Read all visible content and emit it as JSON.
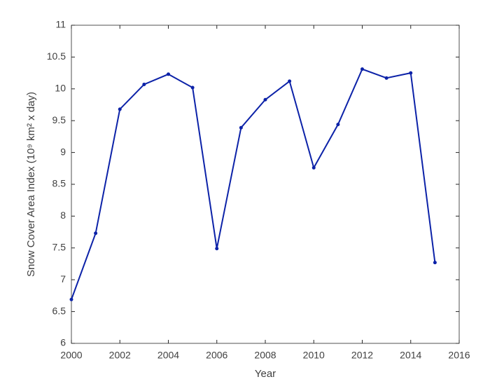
{
  "chart_data": {
    "type": "line",
    "x_label": "Year",
    "y_label": "Snow Cover Area Index (10⁹ km² x day)",
    "x": [
      2000,
      2001,
      2002,
      2003,
      2004,
      2005,
      2006,
      2007,
      2008,
      2009,
      2010,
      2011,
      2012,
      2013,
      2014,
      2015
    ],
    "series": [
      {
        "name": "Snow Cover Area Index",
        "color": "#0c22a8",
        "values": [
          6.69,
          7.73,
          9.68,
          10.07,
          10.23,
          10.02,
          7.49,
          9.39,
          9.83,
          10.12,
          8.76,
          9.44,
          10.31,
          10.17,
          10.25,
          7.27
        ]
      }
    ],
    "xlim": [
      2000,
      2016
    ],
    "xticks": [
      2000,
      2002,
      2004,
      2006,
      2008,
      2010,
      2012,
      2014,
      2016
    ],
    "ylim": [
      6,
      11
    ],
    "yticks": [
      6,
      6.5,
      7,
      7.5,
      8,
      8.5,
      9,
      9.5,
      10,
      10.5,
      11
    ],
    "grid": false
  }
}
